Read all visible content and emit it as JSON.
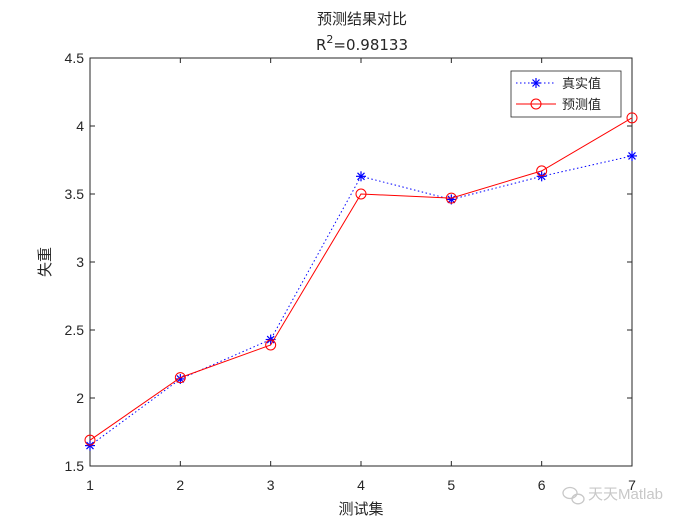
{
  "chart_data": {
    "type": "line",
    "title": "预测结果对比",
    "subtitle_prefix": "R",
    "subtitle_sup": "2",
    "subtitle_value": "=0.98133",
    "xlabel": "测试集",
    "ylabel": "失重",
    "x": [
      1,
      2,
      3,
      4,
      5,
      6,
      7
    ],
    "xlim": [
      1,
      7
    ],
    "ylim": [
      1.5,
      4.5
    ],
    "x_ticks": [
      "1",
      "2",
      "3",
      "4",
      "5",
      "6",
      "7"
    ],
    "y_ticks": [
      "1.5",
      "2",
      "2.5",
      "3",
      "3.5",
      "4",
      "4.5"
    ],
    "grid": false,
    "legend_position": "top-right",
    "series": [
      {
        "name": "真实值",
        "values": [
          1.65,
          2.14,
          2.43,
          3.63,
          3.46,
          3.63,
          3.78
        ],
        "color": "#0000ff",
        "line_style": "dotted",
        "marker": "asterisk"
      },
      {
        "name": "预测值",
        "values": [
          1.69,
          2.15,
          2.39,
          3.5,
          3.47,
          3.67,
          4.06
        ],
        "color": "#ff0000",
        "line_style": "solid",
        "marker": "circle"
      }
    ]
  },
  "watermark": {
    "text": "天天Matlab",
    "icon": "wechat-icon"
  }
}
